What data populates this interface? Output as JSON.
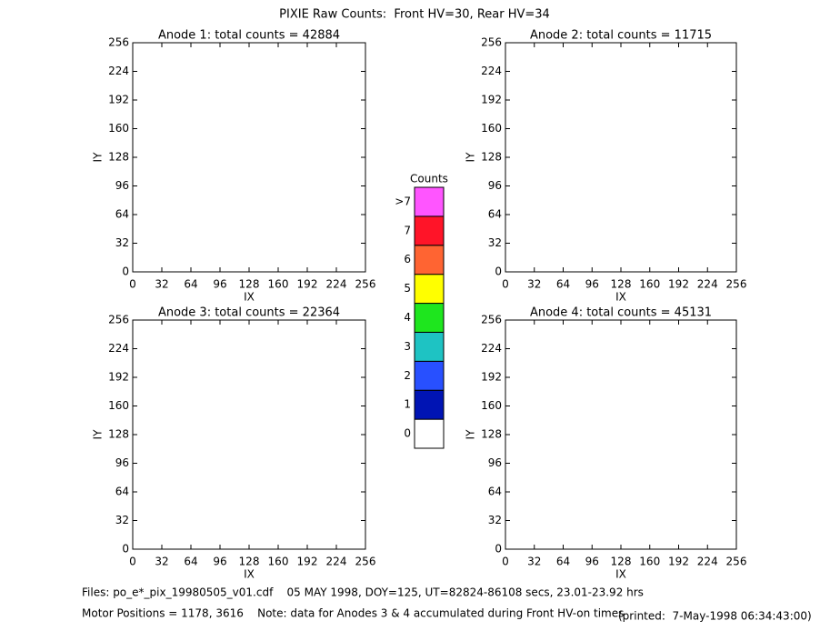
{
  "title": "PIXIE Raw Counts:  Front HV=30, Rear HV=34",
  "chart_data": [
    {
      "type": "heatmap",
      "title": "Anode 1: total counts = 42884",
      "xlabel": "IX",
      "ylabel": "IY",
      "xlim": [
        0,
        256
      ],
      "ylim": [
        0,
        256
      ],
      "xticks": [
        0,
        32,
        64,
        96,
        128,
        160,
        192,
        224,
        256
      ],
      "yticks": [
        0,
        32,
        64,
        96,
        128,
        160,
        192,
        224,
        256
      ]
    },
    {
      "type": "heatmap",
      "title": "Anode 2: total counts = 11715",
      "xlabel": "IX",
      "ylabel": "IY",
      "xlim": [
        0,
        256
      ],
      "ylim": [
        0,
        256
      ],
      "xticks": [
        0,
        32,
        64,
        96,
        128,
        160,
        192,
        224,
        256
      ],
      "yticks": [
        0,
        32,
        64,
        96,
        128,
        160,
        192,
        224,
        256
      ]
    },
    {
      "type": "heatmap",
      "title": "Anode 3: total counts = 22364",
      "xlabel": "IX",
      "ylabel": "IY",
      "xlim": [
        0,
        256
      ],
      "ylim": [
        0,
        256
      ],
      "xticks": [
        0,
        32,
        64,
        96,
        128,
        160,
        192,
        224,
        256
      ],
      "yticks": [
        0,
        32,
        64,
        96,
        128,
        160,
        192,
        224,
        256
      ]
    },
    {
      "type": "heatmap",
      "title": "Anode 4: total counts = 45131",
      "xlabel": "IX",
      "ylabel": "IY",
      "xlim": [
        0,
        256
      ],
      "ylim": [
        0,
        256
      ],
      "xticks": [
        0,
        32,
        64,
        96,
        128,
        160,
        192,
        224,
        256
      ],
      "yticks": [
        0,
        32,
        64,
        96,
        128,
        160,
        192,
        224,
        256
      ]
    }
  ],
  "colorbar": {
    "title": "Counts",
    "levels": [
      0,
      1,
      2,
      3,
      4,
      5,
      6,
      7,
      ">7"
    ],
    "colors": [
      "#ffffff",
      "#0014b4",
      "#2850ff",
      "#1ec3c3",
      "#1ee61e",
      "#ffff00",
      "#ff6432",
      "#ff1428",
      "#ff55ff"
    ]
  },
  "footer": {
    "files": "Files: po_e*_pix_19980505_v01.cdf    05 MAY 1998, DOY=125, UT=82824-86108 secs, 23.01-23.92 hrs",
    "motor": "Motor Positions = 1178, 3616    Note: data for Anodes 3 & 4 accumulated during Front HV-on times",
    "printed": "(printed:  7-May-1998 06:34:43:00)"
  }
}
